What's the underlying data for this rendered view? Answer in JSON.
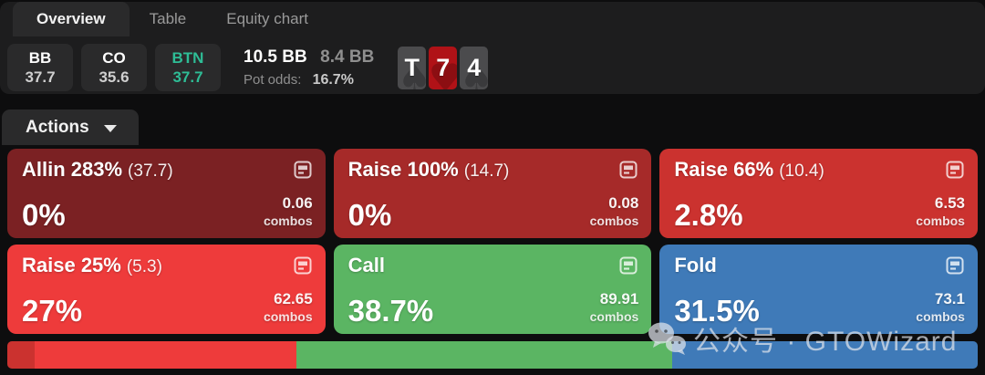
{
  "tabs": [
    {
      "label": "Overview",
      "active": true
    },
    {
      "label": "Table",
      "active": false
    },
    {
      "label": "Equity chart",
      "active": false
    }
  ],
  "players": [
    {
      "position": "BB",
      "stack": "37.7"
    },
    {
      "position": "CO",
      "stack": "35.6"
    },
    {
      "position": "BTN",
      "stack": "37.7",
      "accent": "#2ebd96"
    }
  ],
  "pot": {
    "pot_size": "10.5 BB",
    "bet_size": "8.4 BB",
    "pot_odds_label": "Pot odds:",
    "pot_odds": "16.7%"
  },
  "board": [
    {
      "rank": "T",
      "suit": "spade",
      "glyph": "♠"
    },
    {
      "rank": "7",
      "suit": "heart",
      "glyph": "♥"
    },
    {
      "rank": "4",
      "suit": "spade",
      "glyph": "♠"
    }
  ],
  "actions_dropdown": {
    "label": "Actions"
  },
  "combos_label": "combos",
  "actions": [
    {
      "name": "Allin 283%",
      "size": "(37.7)",
      "frequency": "0%",
      "combos": "0.06",
      "color": "#7b2123"
    },
    {
      "name": "Raise 100%",
      "size": "(14.7)",
      "frequency": "0%",
      "combos": "0.08",
      "color": "#a62a29"
    },
    {
      "name": "Raise 66%",
      "size": "(10.4)",
      "frequency": "2.8%",
      "combos": "6.53",
      "color": "#cb322f"
    },
    {
      "name": "Raise 25%",
      "size": "(5.3)",
      "frequency": "27%",
      "combos": "62.65",
      "color": "#ee3b3b"
    },
    {
      "name": "Call",
      "size": "",
      "frequency": "38.7%",
      "combos": "89.91",
      "color": "#5bb563"
    },
    {
      "name": "Fold",
      "size": "",
      "frequency": "31.5%",
      "combos": "73.1",
      "color": "#3f7ab8"
    }
  ],
  "strategy_bar": [
    {
      "action": "Allin 283%",
      "pct": 0,
      "color": "#7b2123"
    },
    {
      "action": "Raise 100%",
      "pct": 0,
      "color": "#a62a29"
    },
    {
      "action": "Raise 66%",
      "pct": 2.8,
      "color": "#cb322f"
    },
    {
      "action": "Raise 25%",
      "pct": 27,
      "color": "#ee3b3b"
    },
    {
      "action": "Call",
      "pct": 38.7,
      "color": "#5bb563"
    },
    {
      "action": "Fold",
      "pct": 31.5,
      "color": "#3f7ab8"
    }
  ],
  "watermark": {
    "text": "公众号 · GTOWizard"
  }
}
